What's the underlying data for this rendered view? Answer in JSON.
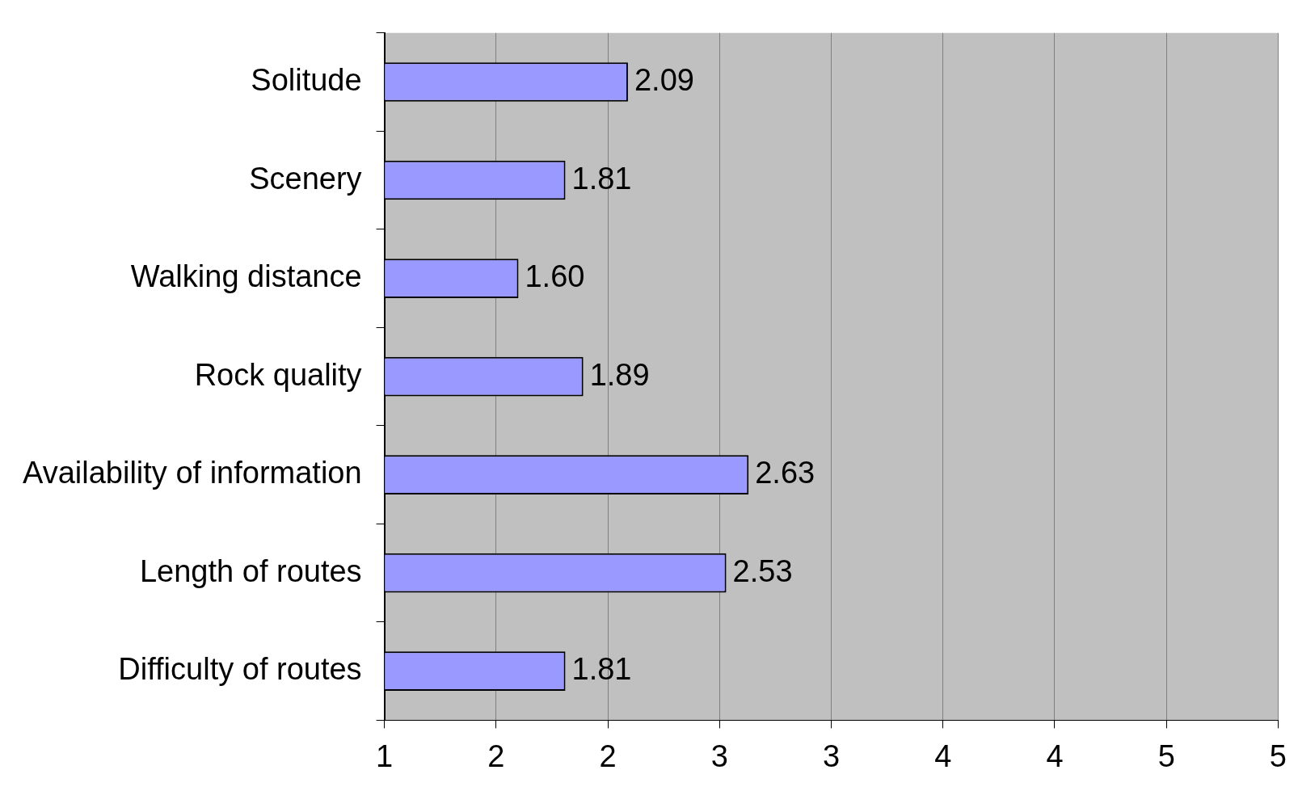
{
  "chart_data": {
    "type": "bar",
    "orientation": "horizontal",
    "categories": [
      "Solitude",
      "Scenery",
      "Walking distance",
      "Rock quality",
      "Availability of information",
      "Length of routes",
      "Difficulty of routes"
    ],
    "values": [
      2.09,
      1.81,
      1.6,
      1.89,
      2.63,
      2.53,
      1.81
    ],
    "value_labels": [
      "2.09",
      "1.81",
      "1.60",
      "1.89",
      "2.63",
      "2.53",
      "1.81"
    ],
    "color": "#9999ff",
    "xlim": [
      1,
      5
    ],
    "xticks": [
      1,
      {
        "value": 1.5,
        "label": "2"
      },
      2,
      {
        "value": 2.5,
        "label": "3"
      },
      3,
      {
        "value": 3.5,
        "label": "4"
      },
      4,
      {
        "value": 4.5,
        "label": "5"
      },
      5
    ],
    "grid": "x",
    "legend": false
  }
}
